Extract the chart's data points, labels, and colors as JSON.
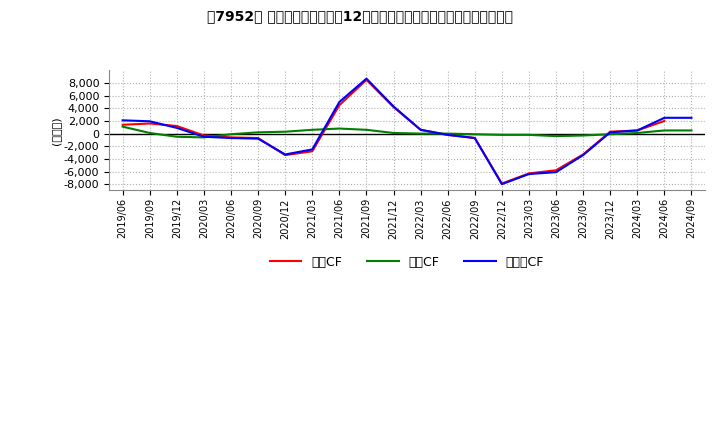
{
  "title": "【7952】 キャッシュフローの12か月移動合計の対前年同期増減額の推移",
  "ylabel": "(百万円)",
  "ylim": [
    -9000,
    10000
  ],
  "yticks": [
    -8000,
    -6000,
    -4000,
    -2000,
    0,
    2000,
    4000,
    6000,
    8000
  ],
  "x_labels": [
    "2019/06",
    "2019/09",
    "2019/12",
    "2020/03",
    "2020/06",
    "2020/09",
    "2020/12",
    "2021/03",
    "2021/06",
    "2021/09",
    "2021/12",
    "2022/03",
    "2022/06",
    "2022/09",
    "2022/12",
    "2023/03",
    "2023/06",
    "2023/09",
    "2023/12",
    "2024/03",
    "2024/06",
    "2024/09"
  ],
  "series": {
    "営業CF": {
      "color": "#ff0000",
      "values": [
        1400,
        1600,
        1200,
        -300,
        -600,
        -700,
        -3400,
        -2800,
        4500,
        8500,
        4200,
        600,
        -200,
        -700,
        -7900,
        -6300,
        -5800,
        -3300,
        300,
        500,
        2000,
        null
      ]
    },
    "投資CF": {
      "color": "#008000",
      "values": [
        1100,
        100,
        -500,
        -600,
        -100,
        200,
        300,
        600,
        800,
        600,
        100,
        0,
        0,
        -100,
        -200,
        -200,
        -400,
        -300,
        -100,
        100,
        500,
        500
      ]
    },
    "フリーCF": {
      "color": "#0000ff",
      "values": [
        2100,
        1950,
        900,
        -500,
        -700,
        -800,
        -3300,
        -2500,
        5000,
        8700,
        4300,
        600,
        -200,
        -700,
        -8000,
        -6400,
        -6100,
        -3400,
        200,
        500,
        2500,
        2500
      ]
    }
  },
  "legend_labels": [
    "営業CF",
    "投資CF",
    "フリーCF"
  ],
  "background_color": "#ffffff",
  "grid_color": "#b0b0b0",
  "grid_style": ":"
}
